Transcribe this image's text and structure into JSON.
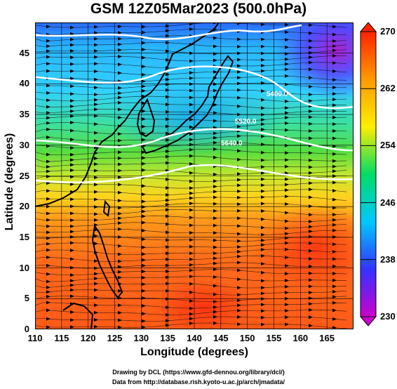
{
  "title": "GSM 12Z05Mar2023 (500.0hPa)",
  "x_axis": {
    "label": "Longitude (degrees)",
    "ticks": [
      "110",
      "115",
      "120",
      "125",
      "130",
      "135",
      "140",
      "145",
      "150",
      "155",
      "160",
      "165"
    ],
    "range": [
      110,
      170
    ]
  },
  "y_axis": {
    "label": "Latitude (degrees)",
    "ticks": [
      "0",
      "5",
      "10",
      "15",
      "20",
      "25",
      "30",
      "35",
      "40",
      "45"
    ],
    "range": [
      0,
      50
    ]
  },
  "colorbar": {
    "ticks": [
      "230",
      "238",
      "246",
      "254",
      "262",
      "270"
    ],
    "range": [
      230,
      270
    ],
    "colors": [
      "#cc00cc",
      "#3333ff",
      "#00c8ff",
      "#00dd66",
      "#ffee00",
      "#ff9900",
      "#ff2200"
    ]
  },
  "contours": [
    {
      "label": "5400.0",
      "lat_near_145": 38
    },
    {
      "label": "5520.0",
      "lat_near_145": 33.5
    },
    {
      "label": "5640.0",
      "lat_near_145": 30
    }
  ],
  "credits": {
    "line1": "Drawing by DCL (https://www.gfd-dennou.org/library/dcl/)",
    "line2": "Data from http://database.rish.kyoto-u.ac.jp/arch/jmadata/"
  }
}
